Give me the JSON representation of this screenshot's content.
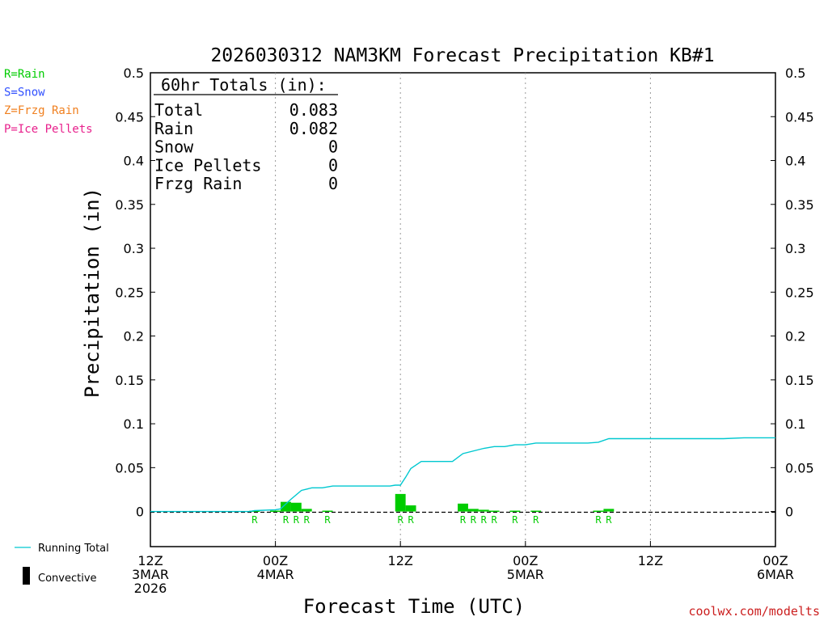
{
  "chart_data": {
    "type": "bar",
    "title": "2026030312 NAM3KM Forecast Precipitation KB#1",
    "ylabel": "Precipitation (in)",
    "xlabel": "Forecast Time (UTC)",
    "ylim": [
      -0.04,
      0.5
    ],
    "xlim_hours": [
      0,
      60
    ],
    "y_ticks": [
      0,
      0.05,
      0.1,
      0.15,
      0.2,
      0.25,
      0.3,
      0.35,
      0.4,
      0.45,
      0.5
    ],
    "y_tick_labels": [
      "0",
      "0.05",
      "0.1",
      "0.15",
      "0.2",
      "0.25",
      "0.3",
      "0.35",
      "0.4",
      "0.45",
      "0.5"
    ],
    "x_ticks": [
      {
        "hour": 0,
        "lines": [
          "12Z",
          "3MAR",
          "2026"
        ]
      },
      {
        "hour": 12,
        "lines": [
          "00Z",
          "4MAR"
        ]
      },
      {
        "hour": 24,
        "lines": [
          "12Z"
        ]
      },
      {
        "hour": 36,
        "lines": [
          "00Z",
          "5MAR"
        ]
      },
      {
        "hour": 48,
        "lines": [
          "12Z"
        ]
      },
      {
        "hour": 60,
        "lines": [
          "00Z",
          "6MAR"
        ]
      }
    ],
    "grid_hours": [
      12,
      24,
      36,
      48
    ],
    "hourly_precip": {
      "hours": [
        10,
        12,
        13,
        14,
        15,
        17,
        24,
        25,
        30,
        31,
        32,
        33,
        35,
        37,
        43,
        44
      ],
      "values": [
        0.001,
        0.001,
        0.011,
        0.01,
        0.003,
        0.001,
        0.02,
        0.007,
        0.009,
        0.003,
        0.002,
        0.001,
        0.001,
        0.001,
        0.001,
        0.003
      ],
      "color": "#00cc00"
    },
    "running_total": {
      "name": "Running Total",
      "color": "#00c8d0",
      "hours": [
        0,
        9.5,
        10,
        12,
        12.5,
        13.5,
        14.5,
        15.5,
        16.5,
        17.5,
        22,
        23,
        23.5,
        24,
        24.5,
        25,
        26,
        28,
        29,
        30,
        32,
        33,
        34,
        35,
        36,
        37,
        38,
        39,
        42,
        43,
        44,
        48,
        55,
        57,
        60
      ],
      "values": [
        0,
        0,
        0.001,
        0.002,
        0.003,
        0.014,
        0.024,
        0.027,
        0.027,
        0.029,
        0.029,
        0.029,
        0.03,
        0.03,
        0.039,
        0.049,
        0.057,
        0.057,
        0.057,
        0.066,
        0.072,
        0.074,
        0.074,
        0.076,
        0.076,
        0.078,
        0.078,
        0.078,
        0.078,
        0.079,
        0.083,
        0.083,
        0.083,
        0.084,
        0.084
      ]
    },
    "ptype_codes": {
      "hours": [
        10,
        13,
        14,
        15,
        17,
        24,
        25,
        30,
        31,
        32,
        33,
        35,
        37,
        43,
        44
      ],
      "labels": [
        "R",
        "R",
        "R",
        "R",
        "R",
        "R",
        "R",
        "R",
        "R",
        "R",
        "R",
        "R",
        "R",
        "R",
        "R"
      ]
    },
    "totals_box": {
      "heading": "60hr Totals (in):",
      "rows": [
        {
          "label": "Total",
          "value": "0.083"
        },
        {
          "label": "Rain",
          "value": "0.082"
        },
        {
          "label": "Snow",
          "value": "0"
        },
        {
          "label": "Ice Pellets",
          "value": "0"
        },
        {
          "label": "Frzg Rain",
          "value": "0"
        }
      ]
    }
  },
  "ptype_legend": [
    {
      "text": "R=Rain",
      "color": "#00cc00"
    },
    {
      "text": "S=Snow",
      "color": "#3050ff"
    },
    {
      "text": "Z=Frzg Rain",
      "color": "#f08020"
    },
    {
      "text": "P=Ice Pellets",
      "color": "#e8208c"
    }
  ],
  "series_legend": {
    "running_total": "Running Total",
    "convective": "Convective"
  },
  "credit": "coolwx.com/modelts"
}
